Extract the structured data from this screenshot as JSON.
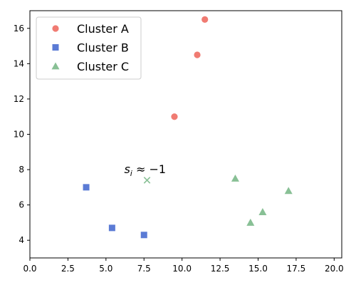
{
  "chart_data": {
    "type": "scatter",
    "xlim": [
      0,
      20.5
    ],
    "ylim": [
      3,
      17
    ],
    "x_ticks": [
      0,
      2.5,
      5,
      7.5,
      10,
      12.5,
      15,
      17.5,
      20
    ],
    "x_tick_labels": [
      "0.0",
      "2.5",
      "5.0",
      "7.5",
      "10.0",
      "12.5",
      "15.0",
      "17.5",
      "20.0"
    ],
    "y_ticks": [
      4,
      6,
      8,
      10,
      12,
      14,
      16
    ],
    "y_tick_labels": [
      "4",
      "6",
      "8",
      "10",
      "12",
      "14",
      "16"
    ],
    "grid": false,
    "legend_position": "top-left",
    "series": [
      {
        "name": "Cluster A",
        "marker": "circle",
        "color": "#f07b72",
        "points": [
          [
            9.5,
            11.0
          ],
          [
            11.0,
            14.5
          ],
          [
            11.5,
            16.5
          ]
        ]
      },
      {
        "name": "Cluster B",
        "marker": "square",
        "color": "#5b7bd5",
        "points": [
          [
            3.7,
            7.0
          ],
          [
            5.4,
            4.7
          ],
          [
            7.5,
            4.3
          ]
        ]
      },
      {
        "name": "Cluster C",
        "marker": "triangle",
        "color": "#88c095",
        "points": [
          [
            13.5,
            7.5
          ],
          [
            14.5,
            5.0
          ],
          [
            15.3,
            5.6
          ],
          [
            17.0,
            6.8
          ]
        ]
      }
    ],
    "highlight_point": {
      "x": 7.7,
      "y": 7.4,
      "marker": "x",
      "color": "#88c095"
    },
    "annotation": {
      "x": 6.2,
      "y": 7.8,
      "s": "s",
      "sub": "i",
      "rest": " ≈ −1"
    }
  }
}
